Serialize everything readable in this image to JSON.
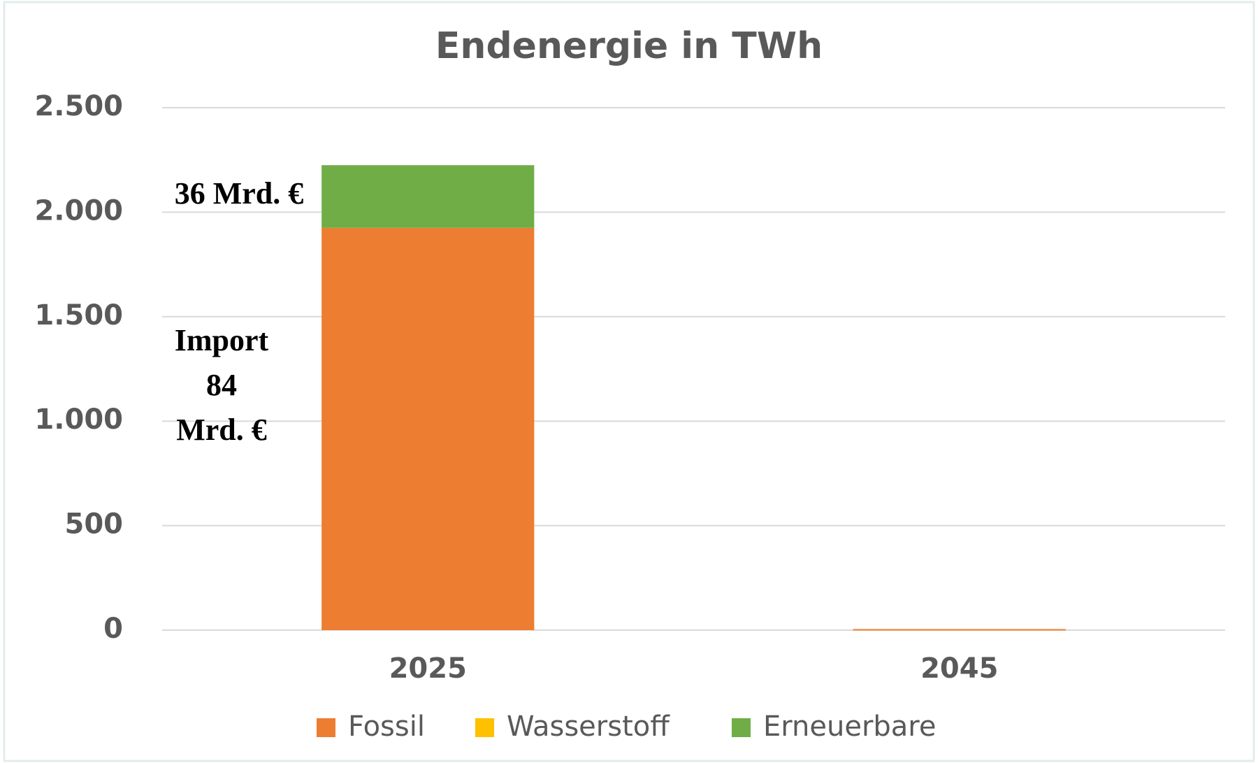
{
  "chart_data": {
    "type": "stacked_bar",
    "title": "Endenergie in TWh",
    "categories": [
      "2025",
      "2045"
    ],
    "series": [
      {
        "name": "Fossil",
        "color": "#ed7d31",
        "values": [
          1925,
          5
        ]
      },
      {
        "name": "Wasserstoff",
        "color": "#ffc000",
        "values": [
          0,
          0
        ]
      },
      {
        "name": "Erneuerbare",
        "color": "#70ad47",
        "values": [
          300,
          0
        ]
      }
    ],
    "ylim": [
      0,
      2500
    ],
    "yticks": [
      0,
      500,
      {
        "value": 1000,
        "label": "1.000"
      },
      {
        "value": 1500,
        "label": "1.500"
      },
      {
        "value": 2000,
        "label": "2.000"
      },
      {
        "value": 2500,
        "label": "2.500"
      }
    ],
    "grid": true,
    "legend": "bottom",
    "annotations": [
      {
        "text": "36 Mrd. €"
      },
      {
        "lines": [
          "Import",
          "84",
          "Mrd. €"
        ]
      }
    ]
  }
}
